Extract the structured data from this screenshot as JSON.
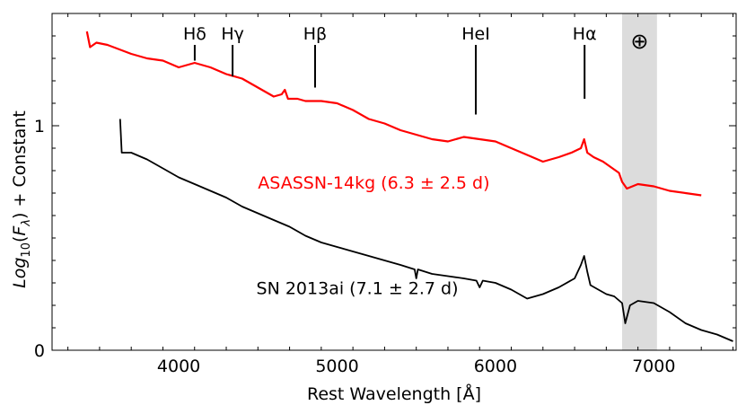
{
  "chart_data": {
    "type": "line",
    "xlabel": "Rest Wavelength [Å]",
    "ylabel": "Log10(Fλ) + Constant",
    "xlim": [
      3200,
      7520
    ],
    "ylim": [
      0,
      1.5
    ],
    "x_ticks": [
      {
        "value": 4000,
        "label": "4000"
      },
      {
        "value": 5000,
        "label": "5000"
      },
      {
        "value": 6000,
        "label": "6000"
      },
      {
        "value": 7000,
        "label": "7000"
      }
    ],
    "y_ticks": [
      {
        "value": 0,
        "label": "0"
      },
      {
        "value": 1,
        "label": "1"
      }
    ],
    "grid": false,
    "shaded_band": {
      "x_range": [
        6800,
        7020
      ],
      "color": "#dcdcdc",
      "symbol": "⊕"
    },
    "line_markers": [
      {
        "label": "Hδ",
        "x": 4101,
        "y_range": [
          1.29,
          1.36
        ]
      },
      {
        "label": "Hγ",
        "x": 4340,
        "y_range": [
          1.22,
          1.36
        ]
      },
      {
        "label": "Hβ",
        "x": 4861,
        "y_range": [
          1.17,
          1.36
        ]
      },
      {
        "label": "HeI",
        "x": 5876,
        "y_range": [
          1.05,
          1.36
        ]
      },
      {
        "label": "Hα",
        "x": 6563,
        "y_range": [
          1.12,
          1.36
        ]
      }
    ],
    "series": [
      {
        "name": "ASASSN-14kg (6.3 ± 2.5 d)",
        "color": "#ff0000",
        "label_pos": {
          "x": 4500,
          "y": 0.72
        },
        "x": [
          3420,
          3440,
          3480,
          3550,
          3700,
          3800,
          3900,
          4000,
          4100,
          4200,
          4300,
          4400,
          4500,
          4600,
          4650,
          4670,
          4690,
          4750,
          4800,
          4900,
          5000,
          5100,
          5200,
          5300,
          5400,
          5500,
          5600,
          5700,
          5800,
          5900,
          6000,
          6100,
          6200,
          6300,
          6400,
          6480,
          6540,
          6560,
          6580,
          6620,
          6680,
          6740,
          6780,
          6800,
          6830,
          6900,
          7000,
          7100,
          7200,
          7300
        ],
        "y": [
          1.42,
          1.35,
          1.37,
          1.36,
          1.32,
          1.3,
          1.29,
          1.26,
          1.28,
          1.26,
          1.23,
          1.21,
          1.17,
          1.13,
          1.14,
          1.16,
          1.12,
          1.12,
          1.11,
          1.11,
          1.1,
          1.07,
          1.03,
          1.01,
          0.98,
          0.96,
          0.94,
          0.93,
          0.95,
          0.94,
          0.93,
          0.9,
          0.87,
          0.84,
          0.86,
          0.88,
          0.9,
          0.94,
          0.88,
          0.86,
          0.84,
          0.81,
          0.79,
          0.75,
          0.72,
          0.74,
          0.73,
          0.71,
          0.7,
          0.69
        ]
      },
      {
        "name": "SN 2013ai (7.1 ± 2.7 d)",
        "color": "#000000",
        "label_pos": {
          "x": 4490,
          "y": 0.25
        },
        "x": [
          3630,
          3640,
          3700,
          3800,
          3900,
          4000,
          4100,
          4200,
          4300,
          4400,
          4500,
          4600,
          4700,
          4800,
          4900,
          5000,
          5100,
          5200,
          5300,
          5400,
          5490,
          5500,
          5510,
          5600,
          5700,
          5800,
          5880,
          5900,
          5920,
          6000,
          6100,
          6200,
          6300,
          6400,
          6500,
          6540,
          6560,
          6580,
          6600,
          6650,
          6700,
          6750,
          6800,
          6820,
          6850,
          6900,
          7000,
          7100,
          7200,
          7300,
          7400,
          7500
        ],
        "y": [
          1.03,
          0.88,
          0.88,
          0.85,
          0.81,
          0.77,
          0.74,
          0.71,
          0.68,
          0.64,
          0.61,
          0.58,
          0.55,
          0.51,
          0.48,
          0.46,
          0.44,
          0.42,
          0.4,
          0.38,
          0.36,
          0.32,
          0.36,
          0.34,
          0.33,
          0.32,
          0.31,
          0.28,
          0.31,
          0.3,
          0.27,
          0.23,
          0.25,
          0.28,
          0.32,
          0.38,
          0.42,
          0.35,
          0.29,
          0.27,
          0.25,
          0.24,
          0.21,
          0.12,
          0.2,
          0.22,
          0.21,
          0.17,
          0.12,
          0.09,
          0.07,
          0.04
        ]
      }
    ]
  }
}
